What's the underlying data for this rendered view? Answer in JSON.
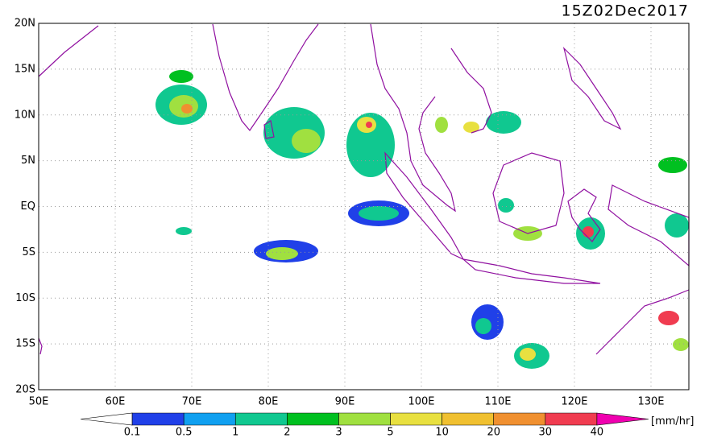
{
  "map": {
    "title": "15Z02Dec2017",
    "lat_labels": [
      "20N",
      "15N",
      "10N",
      "5N",
      "EQ",
      "5S",
      "10S",
      "15S",
      "20S"
    ],
    "lon_labels": [
      "50E",
      "60E",
      "70E",
      "80E",
      "90E",
      "100E",
      "110E",
      "120E",
      "130E"
    ],
    "colorbar": {
      "unit": "[mm/hr]",
      "labels": [
        "0.1",
        "0.5",
        "1",
        "2",
        "3",
        "5",
        "10",
        "20",
        "30",
        "40"
      ],
      "colors": [
        "#ffffff",
        "#2040e8",
        "#10a0f0",
        "#10c890",
        "#00c020",
        "#a0e040",
        "#e8e040",
        "#f0c030",
        "#f09030",
        "#f03c50",
        "#f000b0"
      ]
    }
  }
}
